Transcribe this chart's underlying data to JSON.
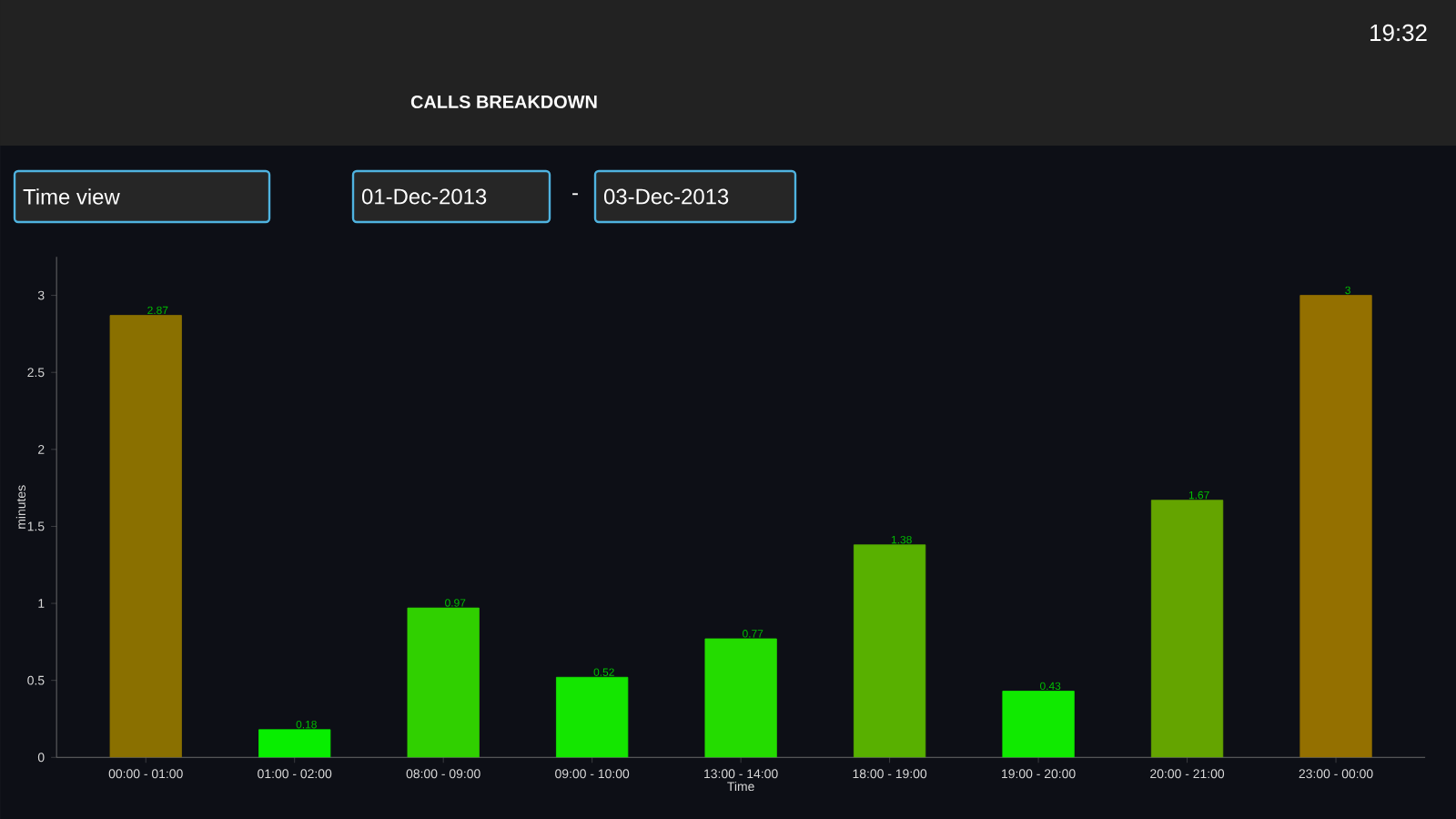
{
  "chart_data": {
    "type": "bar",
    "title": "CALLS BREAKDOWN",
    "annotations": [
      "Time view",
      "01-Dec-2013",
      "-",
      "03-Dec-2013",
      "19:32"
    ],
    "xlabel": "Time",
    "ylabel": "minutes",
    "categories": [
      "00:00 - 01:00",
      "01:00 - 02:00",
      "08:00 - 09:00",
      "09:00 - 10:00",
      "13:00 - 14:00",
      "18:00 - 19:00",
      "19:00 - 20:00",
      "20:00 - 21:00",
      "23:00 - 00:00"
    ],
    "values": [
      2.87,
      0.18,
      0.97,
      0.52,
      0.77,
      1.38,
      0.43,
      1.67,
      3
    ],
    "colors": [
      "#8a7000",
      "#08ee00",
      "#30d000",
      "#14e600",
      "#24dc00",
      "#58b000",
      "#10ea00",
      "#64a400",
      "#947000"
    ],
    "data_labels": true,
    "ylim": [
      0,
      3.25
    ],
    "yticks": [
      0,
      0.5,
      1,
      1.5,
      2,
      2.5,
      3
    ],
    "grid": false
  }
}
